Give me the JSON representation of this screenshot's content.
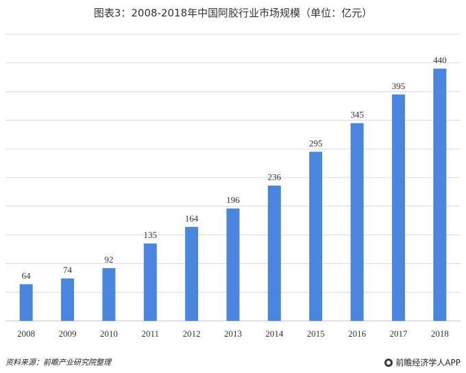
{
  "title": "图表3：2008-2018年中国阿胶行业市场规模（单位：亿元）",
  "source": "资料来源：前瞻产业研究院整理",
  "brand": "前瞻经济学人APP",
  "chart_data": {
    "type": "bar",
    "categories": [
      "2008",
      "2009",
      "2010",
      "2011",
      "2012",
      "2013",
      "2014",
      "2015",
      "2016",
      "2017",
      "2018"
    ],
    "values": [
      64,
      74,
      92,
      135,
      164,
      196,
      236,
      295,
      345,
      395,
      440
    ],
    "ylim": [
      0,
      500
    ],
    "grid": true,
    "bar_color": "#4a86e0",
    "grid_color": "#d9d9d9"
  }
}
